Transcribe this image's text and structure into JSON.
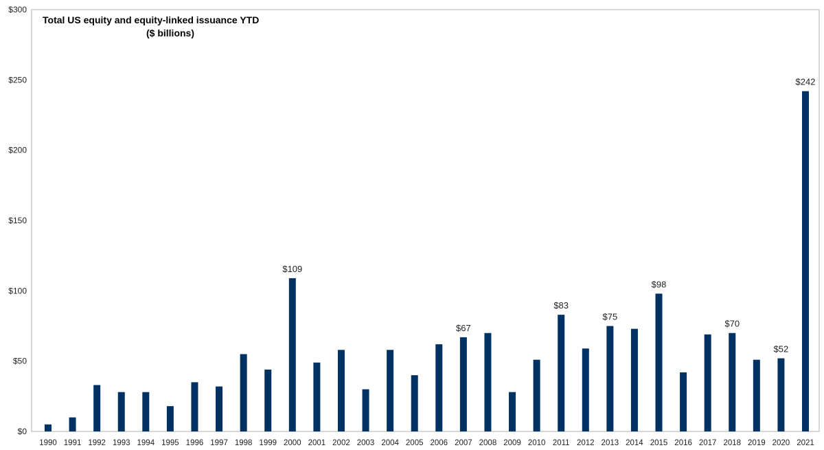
{
  "chart_data": {
    "type": "bar",
    "title": "Total US equity and equity-linked issuance YTD",
    "subtitle": "($ billions)",
    "xlabel": "",
    "ylabel": "",
    "ylim": [
      0,
      300
    ],
    "yticks": [
      0,
      50,
      100,
      150,
      200,
      250,
      300
    ],
    "ytick_labels": [
      "$0",
      "$50",
      "$100",
      "$150",
      "$200",
      "$250",
      "$300"
    ],
    "grid": false,
    "bar_color": "#003163",
    "categories": [
      "1990",
      "1991",
      "1992",
      "1993",
      "1994",
      "1995",
      "1996",
      "1997",
      "1998",
      "1999",
      "2000",
      "2001",
      "2002",
      "2003",
      "2004",
      "2005",
      "2006",
      "2007",
      "2008",
      "2009",
      "2010",
      "2011",
      "2012",
      "2013",
      "2014",
      "2015",
      "2016",
      "2017",
      "2018",
      "2019",
      "2020",
      "2021"
    ],
    "values": [
      5,
      10,
      33,
      28,
      28,
      18,
      35,
      32,
      55,
      44,
      109,
      49,
      58,
      30,
      58,
      40,
      62,
      67,
      70,
      28,
      51,
      83,
      59,
      75,
      73,
      98,
      42,
      69,
      70,
      51,
      52,
      242
    ],
    "data_labels": {
      "2000": "$109",
      "2007": "$67",
      "2011": "$83",
      "2013": "$75",
      "2015": "$98",
      "2018": "$70",
      "2020": "$52",
      "2021": "$242"
    }
  }
}
